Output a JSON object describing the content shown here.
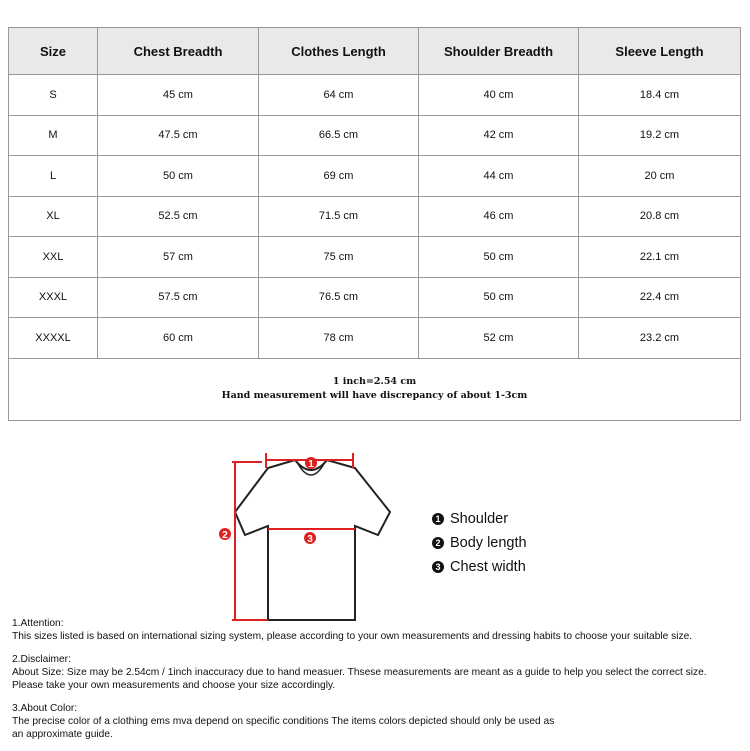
{
  "table": {
    "headers": [
      "Size",
      "Chest Breadth",
      "Clothes Length",
      "Shoulder Breadth",
      "Sleeve Length"
    ],
    "rows": [
      [
        "S",
        "45 cm",
        "64 cm",
        "40 cm",
        "18.4 cm"
      ],
      [
        "M",
        "47.5 cm",
        "66.5 cm",
        "42 cm",
        "19.2 cm"
      ],
      [
        "L",
        "50 cm",
        "69 cm",
        "44 cm",
        "20 cm"
      ],
      [
        "XL",
        "52.5 cm",
        "71.5 cm",
        "46 cm",
        "20.8 cm"
      ],
      [
        "XXL",
        "57 cm",
        "75 cm",
        "50 cm",
        "22.1 cm"
      ],
      [
        "XXXL",
        "57.5 cm",
        "76.5 cm",
        "50 cm",
        "22.4 cm"
      ],
      [
        "XXXXL",
        "60 cm",
        "78 cm",
        "52 cm",
        "23.2 cm"
      ]
    ],
    "note_line1": "1 inch=2.54 cm",
    "note_line2": "Hand measurement will have discrepancy of about 1-3cm"
  },
  "diagram": {
    "markers": [
      "1",
      "2",
      "3"
    ],
    "legend": [
      {
        "num": "1",
        "label": "Shoulder"
      },
      {
        "num": "2",
        "label": "Body length"
      },
      {
        "num": "3",
        "label": "Chest width"
      }
    ],
    "accent_color": "#e02020"
  },
  "notes": [
    {
      "title": "1.Attention:",
      "text": [
        "This sizes listed is based on international sizing system, please according to your own measurements and dressing habits to choose your suitable size."
      ]
    },
    {
      "title": "2.Disclaimer:",
      "text": [
        "About Size: Size may be 2.54cm / 1inch inaccuracy due to hand measuer. Thsese measurements are meant as a guide to help you select the correct size.",
        "Please take your own measurements and choose your size accordingly."
      ]
    },
    {
      "title": "3.About Color:",
      "text": [
        "The precise color of a clothing ems mva depend on specific conditions The items colors depicted should only be used as",
        "an approximate guide."
      ]
    }
  ]
}
